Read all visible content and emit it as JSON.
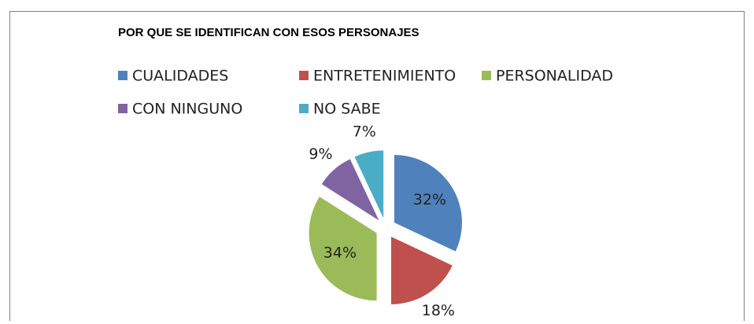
{
  "chart_data": {
    "type": "pie",
    "title": "POR QUE SE IDENTIFICAN CON ESOS PERSONAJES",
    "categories": [
      "CUALIDADES",
      "ENTRETENIMIENTO",
      "PERSONALIDAD",
      "CON NINGUNO",
      "NO SABE"
    ],
    "values": [
      32,
      18,
      34,
      9,
      7
    ],
    "value_labels": [
      "32%",
      "18%",
      "34%",
      "9%",
      "7%"
    ],
    "colors": [
      "#4f81bd",
      "#c0504d",
      "#9bbb59",
      "#8064a2",
      "#4bacc6"
    ],
    "legend": "top"
  }
}
